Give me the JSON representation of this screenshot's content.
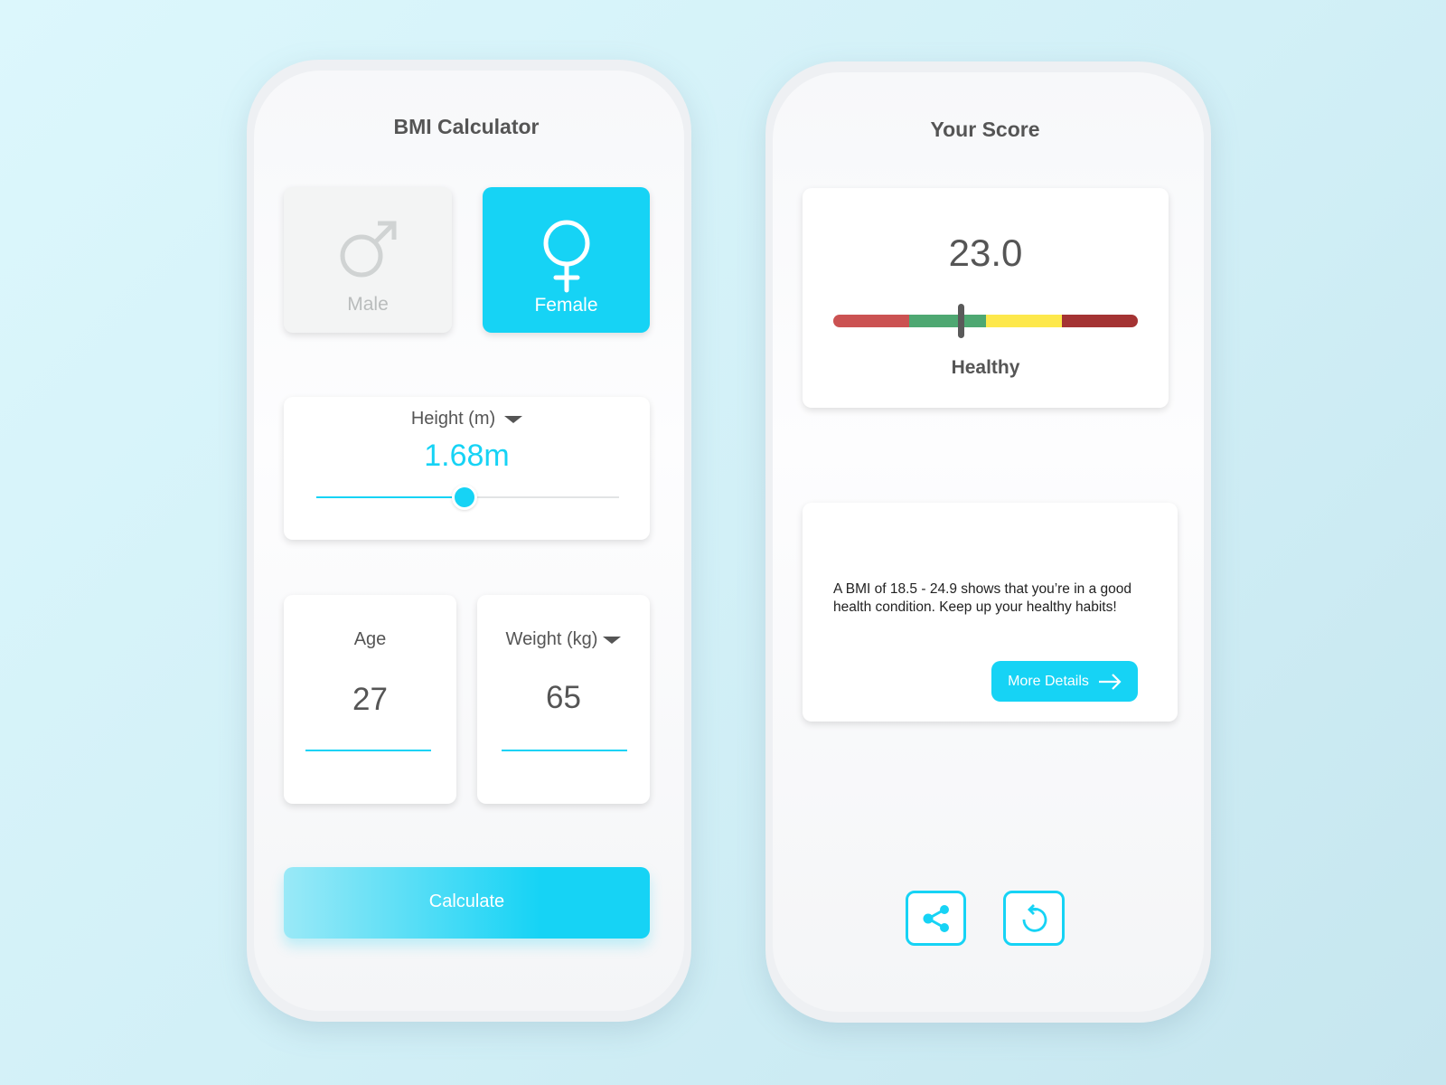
{
  "calculator": {
    "title": "BMI Calculator",
    "gender": {
      "options": [
        {
          "label": "Male",
          "icon": "male-symbol-icon",
          "selected": false
        },
        {
          "label": "Female",
          "icon": "female-symbol-icon",
          "selected": true
        }
      ]
    },
    "height": {
      "label": "Height (m)",
      "value": "1.68m",
      "slider_fraction": 0.49
    },
    "age": {
      "label": "Age",
      "value": "27"
    },
    "weight": {
      "label": "Weight (kg)",
      "value": "65"
    },
    "calculate_label": "Calculate"
  },
  "result": {
    "title": "Your Score",
    "score": "23.0",
    "category": "Healthy",
    "gauge": {
      "segments": [
        "#cb5252",
        "#4ea872",
        "#fde84b",
        "#a43333"
      ],
      "marker_fraction": 0.42
    },
    "description": "A BMI of 18.5 - 24.9 shows that you’re in a good health condition. Keep up your healthy habits!",
    "more_details_label": "More Details",
    "actions": [
      {
        "icon": "share-icon"
      },
      {
        "icon": "refresh-icon"
      }
    ]
  },
  "colors": {
    "accent": "#16d3f5",
    "text": "#555555"
  }
}
